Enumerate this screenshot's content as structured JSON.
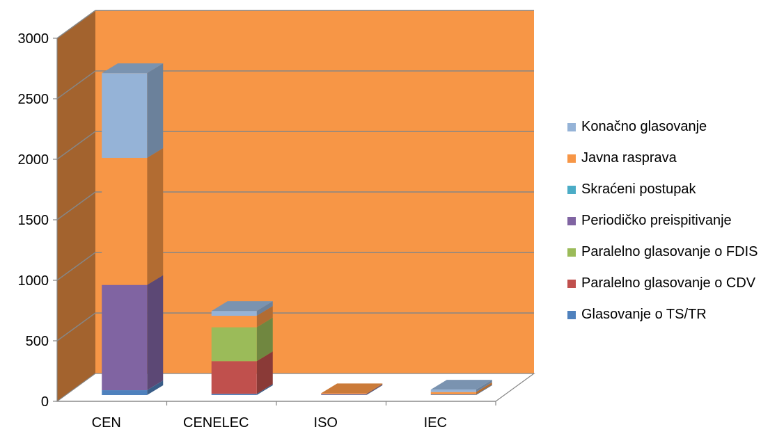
{
  "chart_data": {
    "type": "bar",
    "stacked": true,
    "three_d": true,
    "categories": [
      "CEN",
      "CENELEC",
      "ISO",
      "IEC"
    ],
    "ylim": [
      0,
      3000
    ],
    "yticks": [
      0,
      500,
      1000,
      1500,
      2000,
      2500,
      3000
    ],
    "grid": true,
    "legend_position": "right",
    "plot_background": "#F79646",
    "series": [
      {
        "name": "Glasovanje o TS/TR",
        "color": "#4F81BD",
        "values": [
          40,
          10,
          5,
          5
        ]
      },
      {
        "name": "Paralelno glasovanje o CDV",
        "color": "#C0504D",
        "values": [
          0,
          270,
          5,
          0
        ]
      },
      {
        "name": "Paralelno glasovanje o FDIS",
        "color": "#9BBB59",
        "values": [
          0,
          280,
          0,
          0
        ]
      },
      {
        "name": "Periodičko preispitivanje",
        "color": "#8064A2",
        "values": [
          870,
          0,
          0,
          0
        ]
      },
      {
        "name": "Skraćeni postupak",
        "color": "#4BACC6",
        "values": [
          0,
          0,
          0,
          0
        ]
      },
      {
        "name": "Javna rasprava",
        "color": "#F79646",
        "values": [
          1050,
          95,
          5,
          20
        ]
      },
      {
        "name": "Konačno glasovanje",
        "color": "#95B3D7",
        "values": [
          700,
          40,
          0,
          20
        ]
      }
    ]
  }
}
